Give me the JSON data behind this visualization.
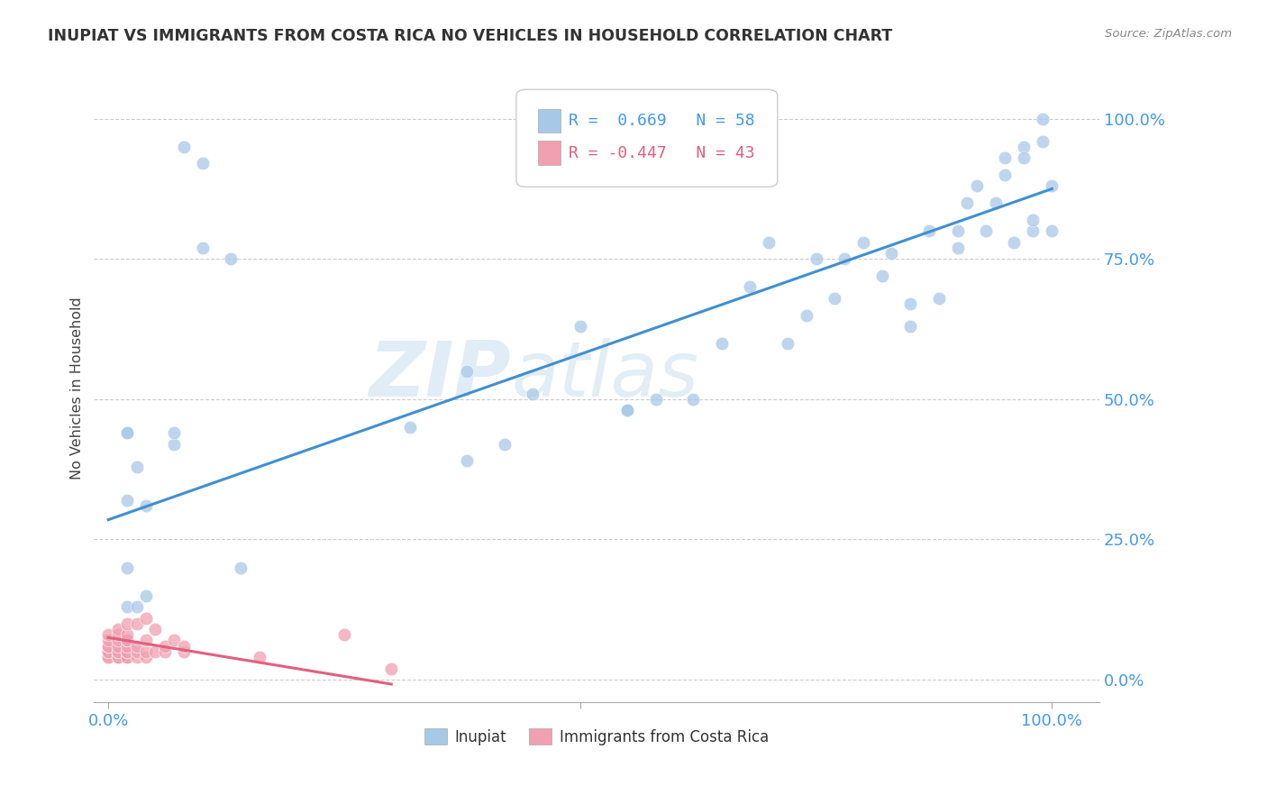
{
  "title": "INUPIAT VS IMMIGRANTS FROM COSTA RICA NO VEHICLES IN HOUSEHOLD CORRELATION CHART",
  "source": "Source: ZipAtlas.com",
  "ylabel": "No Vehicles in Household",
  "ytick_labels": [
    "0.0%",
    "25.0%",
    "50.0%",
    "75.0%",
    "100.0%"
  ],
  "ytick_values": [
    0,
    0.25,
    0.5,
    0.75,
    1.0
  ],
  "legend_blue_r": "0.669",
  "legend_blue_n": "58",
  "legend_pink_r": "-0.447",
  "legend_pink_n": "43",
  "legend_blue_label": "Inupiat",
  "legend_pink_label": "Immigrants from Costa Rica",
  "blue_color": "#a8c8e8",
  "pink_color": "#f0a0b0",
  "blue_line_color": "#4090d0",
  "pink_line_color": "#e06080",
  "watermark_zip": "ZIP",
  "watermark_atlas": "atlas",
  "inupiat_x": [
    0.02,
    0.04,
    0.08,
    0.1,
    0.02,
    0.04,
    0.02,
    0.02,
    0.03,
    0.07,
    0.07,
    0.13,
    0.32,
    0.38,
    0.38,
    0.42,
    0.45,
    0.5,
    0.55,
    0.55,
    0.58,
    0.62,
    0.65,
    0.68,
    0.7,
    0.72,
    0.74,
    0.75,
    0.77,
    0.78,
    0.8,
    0.82,
    0.83,
    0.85,
    0.85,
    0.87,
    0.88,
    0.9,
    0.9,
    0.91,
    0.92,
    0.93,
    0.94,
    0.95,
    0.95,
    0.96,
    0.97,
    0.97,
    0.98,
    0.98,
    0.99,
    0.99,
    1.0,
    1.0,
    0.1,
    0.14,
    0.02,
    0.03
  ],
  "inupiat_y": [
    0.32,
    0.31,
    0.95,
    0.92,
    0.2,
    0.15,
    0.44,
    0.44,
    0.38,
    0.42,
    0.44,
    0.75,
    0.45,
    0.55,
    0.39,
    0.42,
    0.51,
    0.63,
    0.48,
    0.48,
    0.5,
    0.5,
    0.6,
    0.7,
    0.78,
    0.6,
    0.65,
    0.75,
    0.68,
    0.75,
    0.78,
    0.72,
    0.76,
    0.67,
    0.63,
    0.8,
    0.68,
    0.77,
    0.8,
    0.85,
    0.88,
    0.8,
    0.85,
    0.9,
    0.93,
    0.78,
    0.95,
    0.93,
    0.8,
    0.82,
    1.0,
    0.96,
    0.88,
    0.8,
    0.77,
    0.2,
    0.13,
    0.13
  ],
  "costa_rica_x": [
    0.0,
    0.0,
    0.0,
    0.0,
    0.0,
    0.0,
    0.0,
    0.0,
    0.01,
    0.01,
    0.01,
    0.01,
    0.01,
    0.01,
    0.01,
    0.01,
    0.02,
    0.02,
    0.02,
    0.02,
    0.02,
    0.02,
    0.02,
    0.02,
    0.02,
    0.03,
    0.03,
    0.03,
    0.03,
    0.04,
    0.04,
    0.04,
    0.04,
    0.05,
    0.05,
    0.06,
    0.06,
    0.07,
    0.08,
    0.08,
    0.16,
    0.25,
    0.3
  ],
  "costa_rica_y": [
    0.04,
    0.04,
    0.05,
    0.05,
    0.06,
    0.06,
    0.07,
    0.08,
    0.04,
    0.04,
    0.05,
    0.05,
    0.06,
    0.07,
    0.08,
    0.09,
    0.04,
    0.04,
    0.05,
    0.05,
    0.06,
    0.07,
    0.07,
    0.08,
    0.1,
    0.04,
    0.05,
    0.06,
    0.1,
    0.04,
    0.05,
    0.07,
    0.11,
    0.05,
    0.09,
    0.05,
    0.06,
    0.07,
    0.05,
    0.06,
    0.04,
    0.08,
    0.02
  ],
  "blue_line_x0": 0.0,
  "blue_line_x1": 1.0,
  "blue_line_y0": 0.285,
  "blue_line_y1": 0.875,
  "pink_line_x0": 0.0,
  "pink_line_x1": 0.3,
  "pink_line_y0": 0.075,
  "pink_line_y1": -0.008,
  "xlim": [
    -0.015,
    1.05
  ],
  "ylim": [
    -0.04,
    1.08
  ]
}
